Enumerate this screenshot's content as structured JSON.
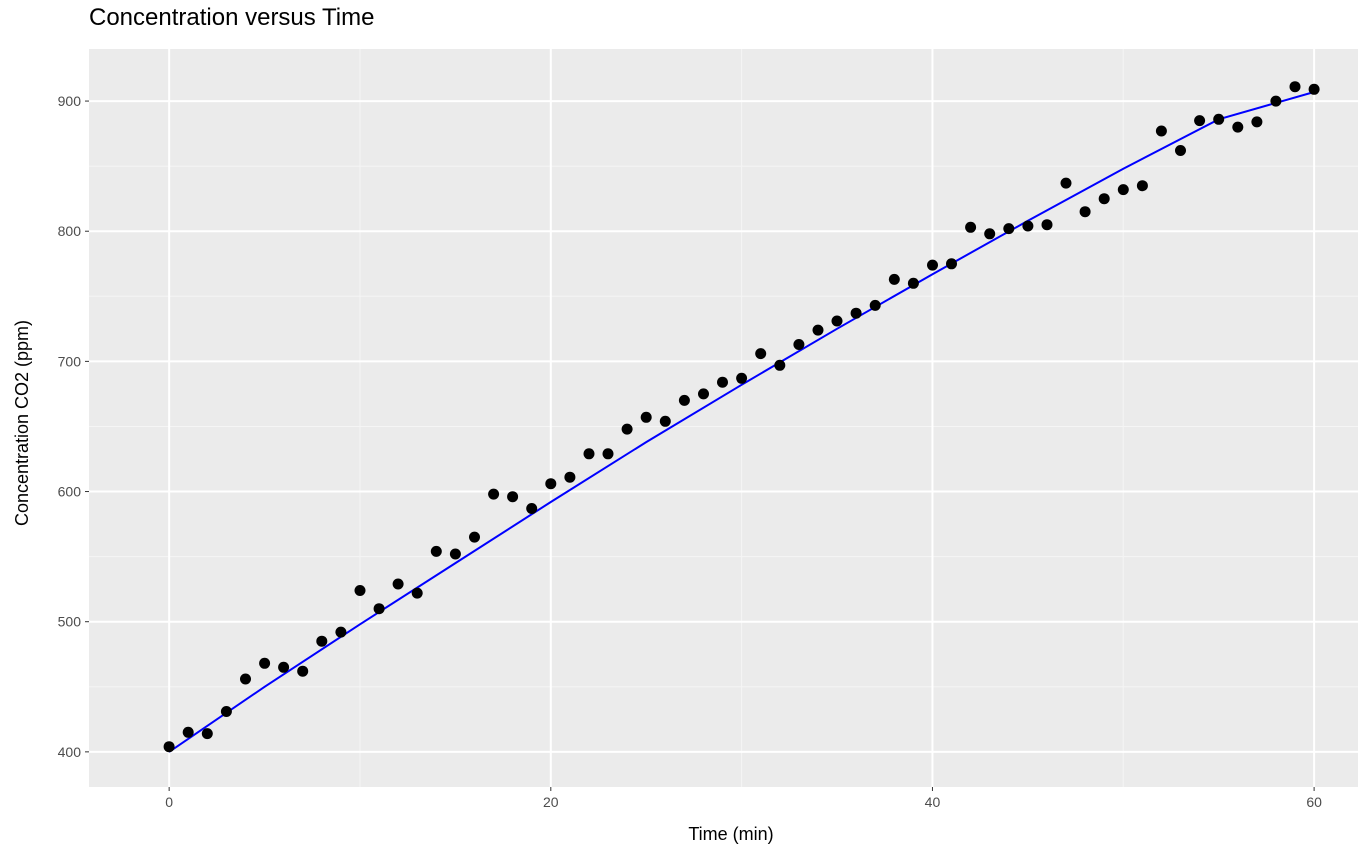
{
  "chart_data": {
    "type": "scatter",
    "title": "Concentration versus Time",
    "xlabel": "Time (min)",
    "ylabel": "Concentration CO2 (ppm)",
    "xlim": [
      -4.2,
      62.3
    ],
    "ylim": [
      373,
      940
    ],
    "x_ticks": [
      0,
      20,
      40,
      60
    ],
    "x_tick_labels": [
      "0",
      "20",
      "40",
      "60"
    ],
    "y_ticks": [
      400,
      500,
      600,
      700,
      800,
      900
    ],
    "y_tick_labels": [
      "400",
      "500",
      "600",
      "700",
      "800",
      "900"
    ],
    "grid": true,
    "background": "#ebebeb",
    "series": [
      {
        "type": "scatter",
        "color": "#000000",
        "points": [
          [
            0,
            404
          ],
          [
            1,
            415
          ],
          [
            2,
            414
          ],
          [
            3,
            431
          ],
          [
            4,
            456
          ],
          [
            5,
            468
          ],
          [
            6,
            465
          ],
          [
            7,
            462
          ],
          [
            8,
            485
          ],
          [
            9,
            492
          ],
          [
            10,
            524
          ],
          [
            11,
            510
          ],
          [
            12,
            529
          ],
          [
            13,
            522
          ],
          [
            14,
            554
          ],
          [
            15,
            552
          ],
          [
            16,
            565
          ],
          [
            17,
            598
          ],
          [
            18,
            596
          ],
          [
            19,
            587
          ],
          [
            20,
            606
          ],
          [
            21,
            611
          ],
          [
            22,
            629
          ],
          [
            23,
            629
          ],
          [
            24,
            648
          ],
          [
            25,
            657
          ],
          [
            26,
            654
          ],
          [
            27,
            670
          ],
          [
            28,
            675
          ],
          [
            29,
            684
          ],
          [
            30,
            687
          ],
          [
            31,
            706
          ],
          [
            32,
            697
          ],
          [
            33,
            713
          ],
          [
            34,
            724
          ],
          [
            35,
            731
          ],
          [
            36,
            737
          ],
          [
            37,
            743
          ],
          [
            38,
            763
          ],
          [
            39,
            760
          ],
          [
            40,
            774
          ],
          [
            41,
            775
          ],
          [
            42,
            803
          ],
          [
            43,
            798
          ],
          [
            44,
            802
          ],
          [
            45,
            804
          ],
          [
            46,
            805
          ],
          [
            47,
            837
          ],
          [
            48,
            815
          ],
          [
            49,
            825
          ],
          [
            50,
            832
          ],
          [
            51,
            835
          ],
          [
            52,
            877
          ],
          [
            53,
            862
          ],
          [
            54,
            885
          ],
          [
            55,
            886
          ],
          [
            56,
            880
          ],
          [
            57,
            884
          ],
          [
            58,
            900
          ],
          [
            59,
            911
          ],
          [
            60,
            909
          ]
        ]
      },
      {
        "type": "line",
        "color": "#0000ff",
        "points": [
          [
            0,
            400
          ],
          [
            5,
            450
          ],
          [
            10,
            498
          ],
          [
            15,
            545
          ],
          [
            20,
            592
          ],
          [
            25,
            638
          ],
          [
            30,
            682
          ],
          [
            35,
            725
          ],
          [
            40,
            767
          ],
          [
            45,
            808
          ],
          [
            50,
            848
          ],
          [
            55,
            886
          ],
          [
            60,
            907
          ]
        ]
      }
    ]
  }
}
